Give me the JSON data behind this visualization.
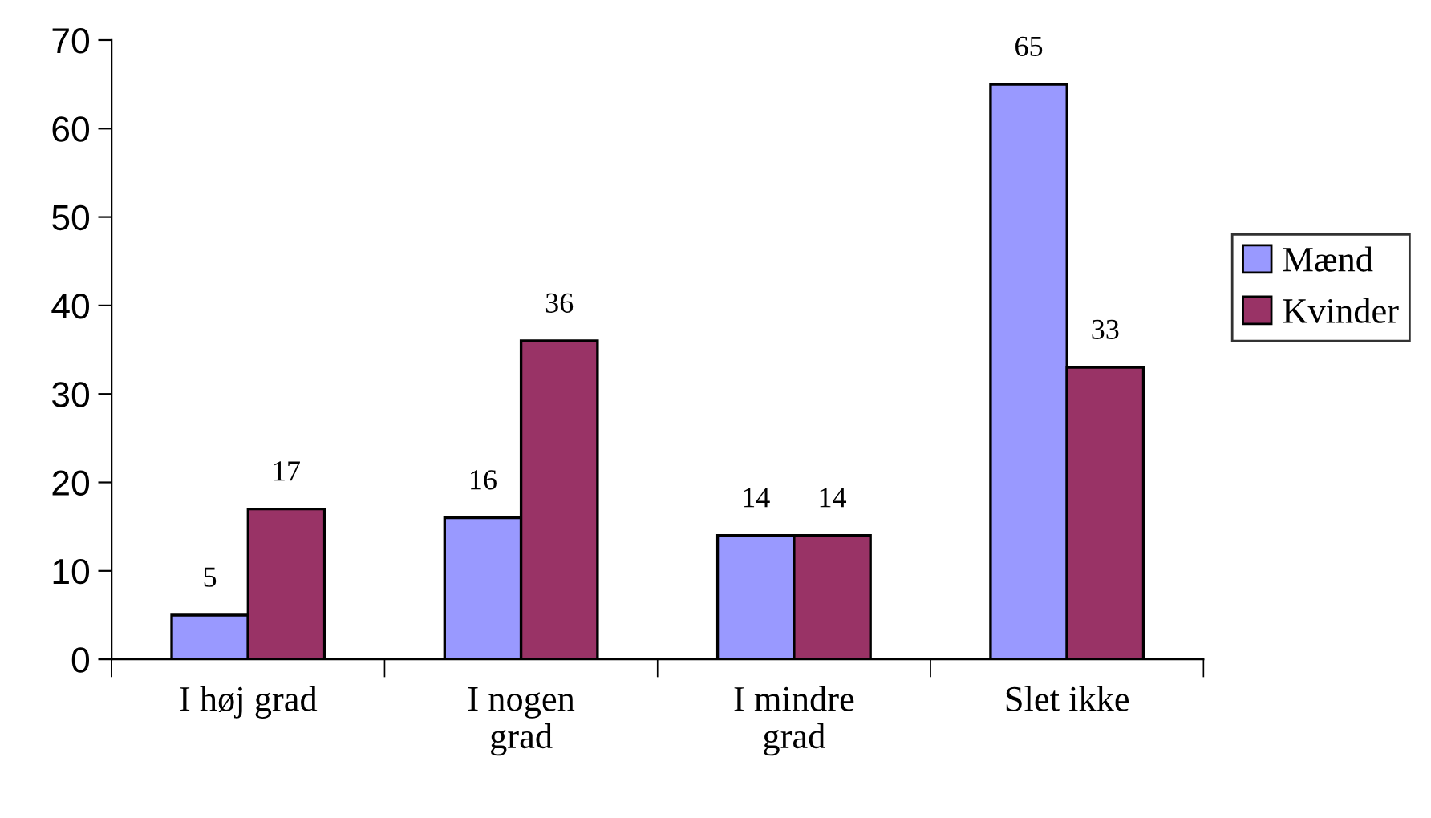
{
  "chart_data": {
    "type": "bar",
    "categories": [
      "I høj grad",
      "I nogen grad",
      "I mindre grad",
      "Slet ikke"
    ],
    "series": [
      {
        "name": "Mænd",
        "color": "#9999ff",
        "values": [
          5,
          16,
          14,
          65
        ]
      },
      {
        "name": "Kvinder",
        "color": "#993366",
        "values": [
          17,
          36,
          14,
          33
        ]
      }
    ],
    "ylim": [
      0,
      70
    ],
    "yticks": [
      0,
      10,
      20,
      30,
      40,
      50,
      60,
      70
    ],
    "data_labels": true,
    "legend": "right",
    "grid": false
  }
}
